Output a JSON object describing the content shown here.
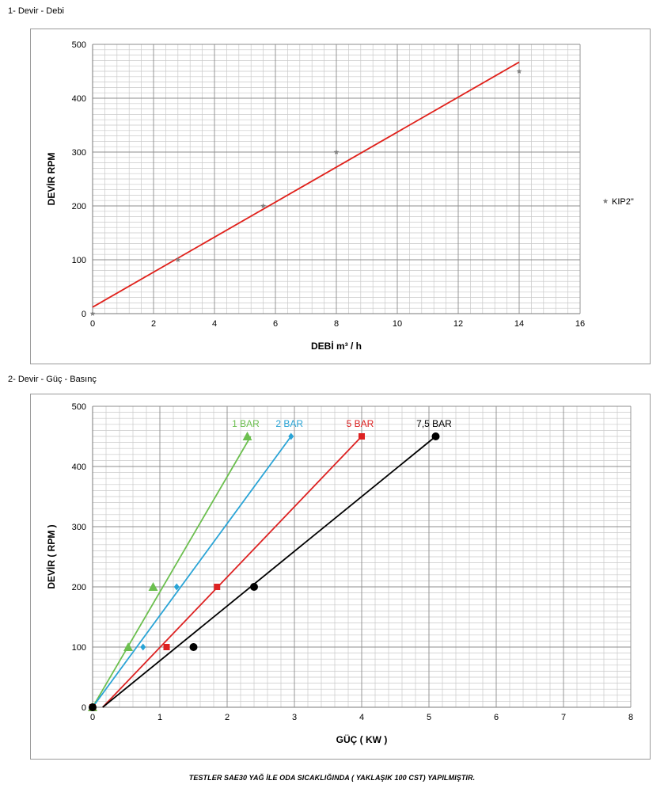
{
  "sections": {
    "chart1_title": "1- Devir - Debi",
    "chart2_title": "2- Devir - Güç - Basınç"
  },
  "footer_note": "TESTLER SAE30 YAĞ İLE ODA SICAKLIĞINDA ( YAKLAŞIK 100 CST) YAPILMIŞTIR.",
  "chart_data": [
    {
      "type": "scatter",
      "title": "",
      "xlabel": "DEBİ m³ / h",
      "ylabel": "DEVİR RPM",
      "xlim": [
        0,
        16
      ],
      "ylim": [
        0,
        500
      ],
      "x_ticks": [
        0,
        2,
        4,
        6,
        8,
        10,
        12,
        14,
        16
      ],
      "y_ticks": [
        0,
        100,
        200,
        300,
        400,
        500
      ],
      "grid": true,
      "legend": "right",
      "series": [
        {
          "name": "KIP2\"",
          "color": "#7f7f7f",
          "marker": "star",
          "points": [
            [
              0,
              0
            ],
            [
              2.8,
              100
            ],
            [
              5.6,
              200
            ],
            [
              8,
              300
            ],
            [
              14,
              450
            ]
          ]
        }
      ],
      "trendlines": [
        {
          "color": "#e0211b",
          "from": [
            0,
            12
          ],
          "to": [
            14,
            467
          ]
        }
      ]
    },
    {
      "type": "scatter",
      "title": "",
      "xlabel": "GÜÇ ( KW )",
      "ylabel": "DEVİR ( RPM )",
      "xlim": [
        0,
        8
      ],
      "ylim": [
        0,
        500
      ],
      "x_ticks": [
        0,
        1,
        2,
        3,
        4,
        5,
        6,
        7,
        8
      ],
      "y_ticks": [
        0,
        100,
        200,
        300,
        400,
        500
      ],
      "grid": true,
      "legend": "none",
      "series": [
        {
          "name": "1 BAR",
          "color": "#6cbf4f",
          "marker": "triangle",
          "points": [
            [
              0,
              0
            ],
            [
              0.53,
              100
            ],
            [
              0.9,
              200
            ],
            [
              2.3,
              450
            ]
          ],
          "trendline": {
            "from": [
              0,
              0
            ],
            "to": [
              2.35,
              450
            ]
          }
        },
        {
          "name": "2 BAR",
          "color": "#2aa4d6",
          "marker": "diamond",
          "points": [
            [
              0,
              0
            ],
            [
              0.75,
              100
            ],
            [
              1.25,
              200
            ],
            [
              2.95,
              450
            ]
          ],
          "trendline": {
            "from": [
              0,
              0
            ],
            "to": [
              2.95,
              450
            ]
          }
        },
        {
          "name": "5 BAR",
          "color": "#dd2222",
          "marker": "square",
          "points": [
            [
              0,
              0
            ],
            [
              1.1,
              100
            ],
            [
              1.85,
              200
            ],
            [
              4.0,
              450
            ]
          ],
          "trendline": {
            "from": [
              0.15,
              0
            ],
            "to": [
              4.0,
              450
            ]
          }
        },
        {
          "name": "7,5 BAR",
          "color": "#000000",
          "marker": "circle",
          "points": [
            [
              0,
              0
            ],
            [
              1.5,
              100
            ],
            [
              2.4,
              200
            ],
            [
              5.1,
              450
            ]
          ],
          "trendline": {
            "from": [
              0.15,
              0
            ],
            "to": [
              5.1,
              450
            ]
          }
        }
      ]
    }
  ]
}
